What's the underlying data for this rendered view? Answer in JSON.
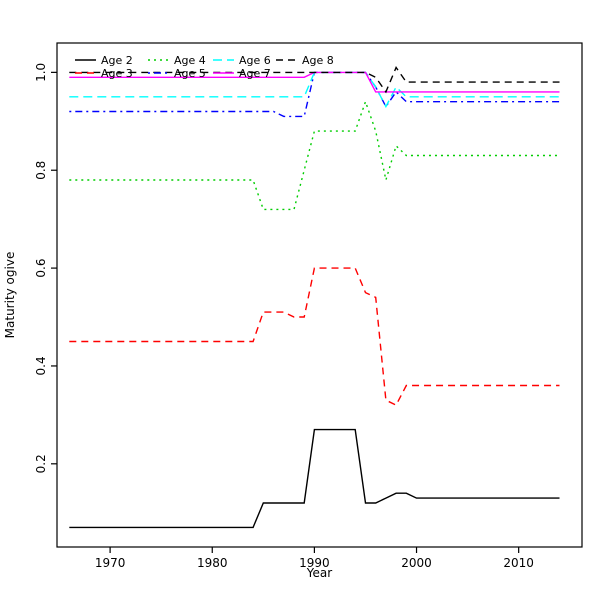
{
  "chart_data": {
    "type": "line",
    "title": "",
    "xlabel": "Year",
    "ylabel": "Maturity ogive",
    "xlim": [
      1964.8,
      2016.2
    ],
    "ylim": [
      0.03,
      1.06
    ],
    "x_ticks": [
      "1970",
      "1980",
      "1990",
      "2000",
      "2010"
    ],
    "x_tick_values": [
      1970,
      1980,
      1990,
      2000,
      2010
    ],
    "y_ticks": [
      "0.2",
      "0.4",
      "0.6",
      "0.8",
      "1.0"
    ],
    "y_tick_values": [
      0.2,
      0.4,
      0.6,
      0.8,
      1.0
    ],
    "grid": false,
    "legend_position": "top-left",
    "years": [
      1966,
      1967,
      1968,
      1969,
      1970,
      1971,
      1972,
      1973,
      1974,
      1975,
      1976,
      1977,
      1978,
      1979,
      1980,
      1981,
      1982,
      1983,
      1984,
      1985,
      1986,
      1987,
      1988,
      1989,
      1990,
      1991,
      1992,
      1993,
      1994,
      1995,
      1996,
      1997,
      1998,
      1999,
      2000,
      2001,
      2002,
      2003,
      2004,
      2005,
      2006,
      2007,
      2008,
      2009,
      2010,
      2011,
      2012,
      2013,
      2014
    ],
    "series": [
      {
        "name": "Age 2",
        "color": "#000000",
        "dash": "solid",
        "values": [
          0.07,
          0.07,
          0.07,
          0.07,
          0.07,
          0.07,
          0.07,
          0.07,
          0.07,
          0.07,
          0.07,
          0.07,
          0.07,
          0.07,
          0.07,
          0.07,
          0.07,
          0.07,
          0.07,
          0.12,
          0.12,
          0.12,
          0.12,
          0.12,
          0.27,
          0.27,
          0.27,
          0.27,
          0.27,
          0.12,
          0.12,
          0.13,
          0.14,
          0.14,
          0.13,
          0.13,
          0.13,
          0.13,
          0.13,
          0.13,
          0.13,
          0.13,
          0.13,
          0.13,
          0.13,
          0.13,
          0.13,
          0.13,
          0.13
        ]
      },
      {
        "name": "Age 3",
        "color": "#FF0000",
        "dash": "dashed",
        "values": [
          0.45,
          0.45,
          0.45,
          0.45,
          0.45,
          0.45,
          0.45,
          0.45,
          0.45,
          0.45,
          0.45,
          0.45,
          0.45,
          0.45,
          0.45,
          0.45,
          0.45,
          0.45,
          0.45,
          0.51,
          0.51,
          0.51,
          0.5,
          0.5,
          0.6,
          0.6,
          0.6,
          0.6,
          0.6,
          0.55,
          0.54,
          0.33,
          0.32,
          0.36,
          0.36,
          0.36,
          0.36,
          0.36,
          0.36,
          0.36,
          0.36,
          0.36,
          0.36,
          0.36,
          0.36,
          0.36,
          0.36,
          0.36,
          0.36
        ]
      },
      {
        "name": "Age 4",
        "color": "#00CD00",
        "dash": "dotted",
        "values": [
          0.78,
          0.78,
          0.78,
          0.78,
          0.78,
          0.78,
          0.78,
          0.78,
          0.78,
          0.78,
          0.78,
          0.78,
          0.78,
          0.78,
          0.78,
          0.78,
          0.78,
          0.78,
          0.78,
          0.72,
          0.72,
          0.72,
          0.72,
          0.8,
          0.88,
          0.88,
          0.88,
          0.88,
          0.88,
          0.94,
          0.88,
          0.78,
          0.85,
          0.83,
          0.83,
          0.83,
          0.83,
          0.83,
          0.83,
          0.83,
          0.83,
          0.83,
          0.83,
          0.83,
          0.83,
          0.83,
          0.83,
          0.83,
          0.83
        ]
      },
      {
        "name": "Age 5",
        "color": "#0000FF",
        "dash": "dotdash",
        "values": [
          0.92,
          0.92,
          0.92,
          0.92,
          0.92,
          0.92,
          0.92,
          0.92,
          0.92,
          0.92,
          0.92,
          0.92,
          0.92,
          0.92,
          0.92,
          0.92,
          0.92,
          0.92,
          0.92,
          0.92,
          0.92,
          0.91,
          0.91,
          0.91,
          1.0,
          1.0,
          1.0,
          1.0,
          1.0,
          1.0,
          0.97,
          0.93,
          0.96,
          0.94,
          0.94,
          0.94,
          0.94,
          0.94,
          0.94,
          0.94,
          0.94,
          0.94,
          0.94,
          0.94,
          0.94,
          0.94,
          0.94,
          0.94,
          0.94
        ]
      },
      {
        "name": "Age 6",
        "color": "#00FFFF",
        "dash": "longdash",
        "values": [
          0.95,
          0.95,
          0.95,
          0.95,
          0.95,
          0.95,
          0.95,
          0.95,
          0.95,
          0.95,
          0.95,
          0.95,
          0.95,
          0.95,
          0.95,
          0.95,
          0.95,
          0.95,
          0.95,
          0.95,
          0.95,
          0.95,
          0.95,
          0.95,
          1.0,
          1.0,
          1.0,
          1.0,
          1.0,
          1.0,
          0.97,
          0.93,
          0.97,
          0.95,
          0.95,
          0.95,
          0.95,
          0.95,
          0.95,
          0.95,
          0.95,
          0.95,
          0.95,
          0.95,
          0.95,
          0.95,
          0.95,
          0.95,
          0.95
        ]
      },
      {
        "name": "Age 7",
        "color": "#FF00FF",
        "dash": "solid",
        "values": [
          0.99,
          0.99,
          0.99,
          0.99,
          0.99,
          0.99,
          0.99,
          0.99,
          0.99,
          0.99,
          0.99,
          0.99,
          0.99,
          0.99,
          0.99,
          0.99,
          0.99,
          0.99,
          0.99,
          0.99,
          0.99,
          0.99,
          0.99,
          0.99,
          1.0,
          1.0,
          1.0,
          1.0,
          1.0,
          1.0,
          0.96,
          0.96,
          0.96,
          0.96,
          0.96,
          0.96,
          0.96,
          0.96,
          0.96,
          0.96,
          0.96,
          0.96,
          0.96,
          0.96,
          0.96,
          0.96,
          0.96,
          0.96,
          0.96
        ]
      },
      {
        "name": "Age 8",
        "color": "#000000",
        "dash": "dashed",
        "values": [
          1.0,
          1.0,
          1.0,
          1.0,
          1.0,
          1.0,
          1.0,
          1.0,
          1.0,
          1.0,
          1.0,
          1.0,
          1.0,
          1.0,
          1.0,
          1.0,
          1.0,
          1.0,
          1.0,
          1.0,
          1.0,
          1.0,
          1.0,
          1.0,
          1.0,
          1.0,
          1.0,
          1.0,
          1.0,
          1.0,
          0.99,
          0.96,
          1.01,
          0.98,
          0.98,
          0.98,
          0.98,
          0.98,
          0.98,
          0.98,
          0.98,
          0.98,
          0.98,
          0.98,
          0.98,
          0.98,
          0.98,
          0.98,
          0.98
        ]
      }
    ]
  }
}
